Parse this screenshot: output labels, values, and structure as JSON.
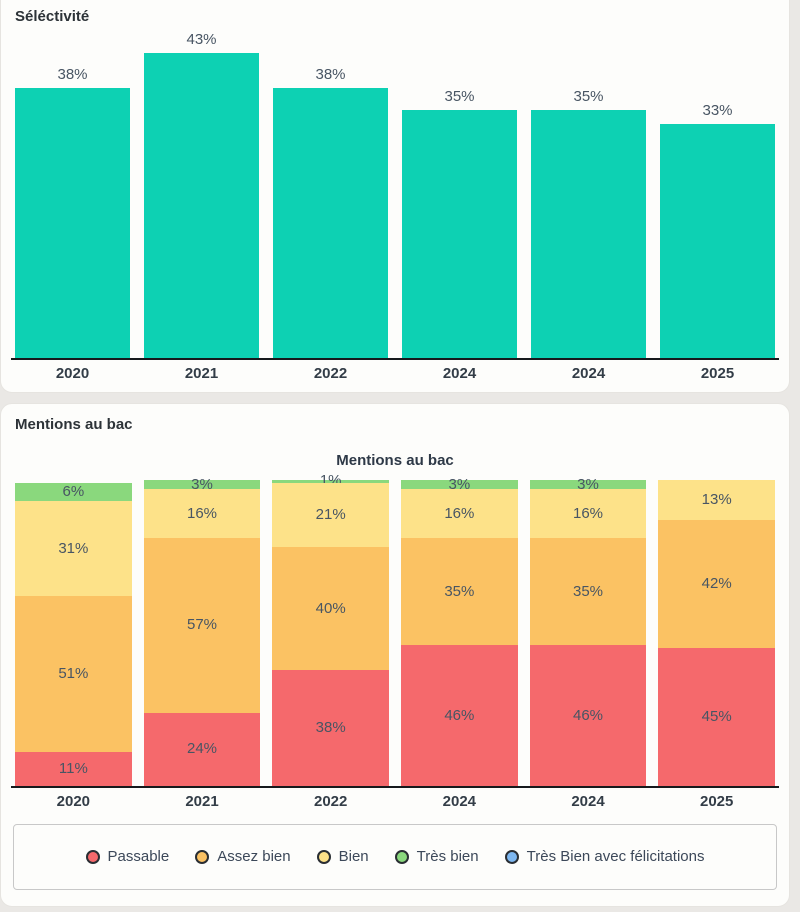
{
  "selectivity": {
    "section_title": "Séléctivité"
  },
  "mentions": {
    "section_title": "Mentions au bac",
    "chart_title": "Mentions au bac"
  },
  "chart_data": [
    {
      "id": "selectivity",
      "type": "bar",
      "title": "Séléctivité",
      "categories": [
        "2020",
        "2021",
        "2022",
        "2024",
        "2024",
        "2025"
      ],
      "values": [
        38,
        43,
        38,
        35,
        35,
        33
      ],
      "value_labels": [
        "38%",
        "43%",
        "38%",
        "35%",
        "35%",
        "33%"
      ],
      "bar_color": "#0dd1b3",
      "xlabel": "",
      "ylabel": "",
      "ylim": [
        0,
        45
      ],
      "grid": false,
      "legend_position": "none"
    },
    {
      "id": "mentions",
      "type": "stacked-bar",
      "title": "Mentions au bac",
      "categories": [
        "2020",
        "2021",
        "2022",
        "2024",
        "2024",
        "2025"
      ],
      "unit": "%",
      "series": [
        {
          "name": "Passable",
          "color": "#f5696c",
          "values": [
            11,
            24,
            38,
            46,
            46,
            45
          ]
        },
        {
          "name": "Assez bien",
          "color": "#fbc263",
          "values": [
            51,
            57,
            40,
            35,
            35,
            42
          ]
        },
        {
          "name": "Bien",
          "color": "#fde289",
          "values": [
            31,
            16,
            21,
            16,
            16,
            13
          ]
        },
        {
          "name": "Très bien",
          "color": "#8ad87d",
          "values": [
            6,
            3,
            1,
            3,
            3,
            0
          ]
        },
        {
          "name": "Très Bien avec félicitations",
          "color": "#7db7f0",
          "values": [
            0,
            0,
            0,
            0,
            0,
            0
          ]
        }
      ],
      "xlabel": "",
      "ylabel": "",
      "ylim": [
        0,
        100
      ],
      "grid": false,
      "legend_position": "bottom"
    }
  ],
  "legend": {
    "items": [
      {
        "label": "Passable",
        "color": "#f5696c"
      },
      {
        "label": "Assez bien",
        "color": "#fbc263"
      },
      {
        "label": "Bien",
        "color": "#fde289"
      },
      {
        "label": "Très bien",
        "color": "#8ad87d"
      },
      {
        "label": "Très Bien avec félicitations",
        "color": "#7db7f0"
      }
    ]
  },
  "colors": {
    "page_background": "#eae8e5",
    "card_background": "#fdfdfb",
    "axis": "#16191c",
    "value_label": "#485563",
    "category_label": "#333d47",
    "title_text": "#2d3338",
    "legend_text": "#3c4859",
    "legend_border": "#c8c8c8"
  }
}
